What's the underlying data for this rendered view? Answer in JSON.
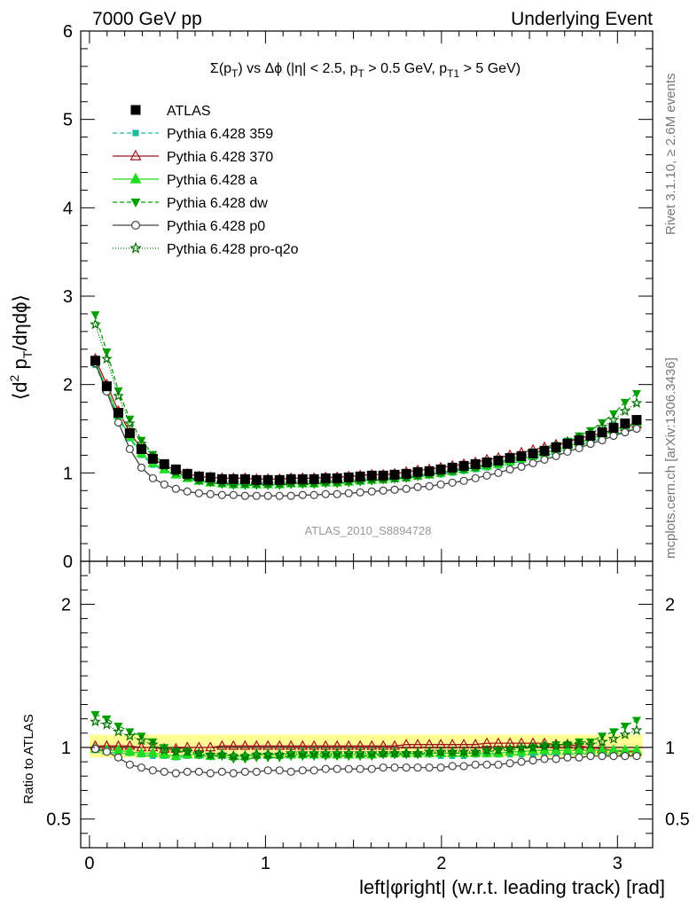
{
  "header": {
    "left": "7000 GeV pp",
    "right": "Underlying Event"
  },
  "side_labels": {
    "rivet": "Rivet 3.1.10, ≥ 2.6M events",
    "mcplots": "mcplots.cern.ch [arXiv:1306.3436]"
  },
  "analysis_tag": "ATLAS_2010_S8894728",
  "chart_data": {
    "type": "line",
    "title": "Σ(p_T) vs Δφ (|η| < 2.5, p_T > 0.5 GeV, p_T1 > 5 GeV)",
    "xlabel": "left|φright| (w.r.t. leading track) [rad]",
    "ylabel": "⟨d² p_T/dηdφ⟩",
    "ratio_ylabel": "Ratio to ATLAS",
    "xlim": [
      -0.05,
      3.2
    ],
    "ylim": [
      0,
      6
    ],
    "ratio_ylim": [
      0.3,
      2.3
    ],
    "x_ticks": [
      "0",
      "1",
      "2",
      "3"
    ],
    "y_ticks": [
      "0",
      "1",
      "2",
      "3",
      "4",
      "5",
      "6"
    ],
    "ratio_ticks": [
      "0.5",
      "1",
      "2"
    ],
    "legend_position": "top-left",
    "grid": false,
    "x": [
      0.033,
      0.098,
      0.164,
      0.229,
      0.295,
      0.36,
      0.425,
      0.491,
      0.556,
      0.622,
      0.687,
      0.753,
      0.818,
      0.884,
      0.949,
      1.014,
      1.08,
      1.145,
      1.211,
      1.276,
      1.342,
      1.407,
      1.473,
      1.538,
      1.604,
      1.669,
      1.734,
      1.8,
      1.865,
      1.931,
      1.996,
      2.062,
      2.127,
      2.193,
      2.258,
      2.323,
      2.389,
      2.454,
      2.52,
      2.585,
      2.651,
      2.716,
      2.782,
      2.847,
      2.913,
      2.978,
      3.043,
      3.109
    ],
    "series": [
      {
        "name": "ATLAS",
        "color": "#000000",
        "marker": "square",
        "values": [
          2.27,
          1.98,
          1.68,
          1.45,
          1.27,
          1.16,
          1.1,
          1.04,
          0.99,
          0.96,
          0.95,
          0.93,
          0.93,
          0.93,
          0.92,
          0.92,
          0.92,
          0.93,
          0.93,
          0.93,
          0.94,
          0.94,
          0.95,
          0.96,
          0.97,
          0.97,
          0.98,
          0.99,
          1.01,
          1.02,
          1.04,
          1.06,
          1.08,
          1.1,
          1.12,
          1.14,
          1.17,
          1.19,
          1.22,
          1.25,
          1.29,
          1.33,
          1.37,
          1.42,
          1.46,
          1.51,
          1.56,
          1.6
        ],
        "ratio": [
          1.0,
          1.0,
          1.0,
          1.0,
          1.0,
          1.0,
          1.0,
          1.0,
          1.0,
          1.0,
          1.0,
          1.0,
          1.0,
          1.0,
          1.0,
          1.0,
          1.0,
          1.0,
          1.0,
          1.0,
          1.0,
          1.0,
          1.0,
          1.0,
          1.0,
          1.0,
          1.0,
          1.0,
          1.0,
          1.0,
          1.0,
          1.0,
          1.0,
          1.0,
          1.0,
          1.0,
          1.0,
          1.0,
          1.0,
          1.0,
          1.0,
          1.0,
          1.0,
          1.0,
          1.0,
          1.0,
          1.0,
          1.0
        ]
      },
      {
        "name": "Pythia 6.428 359",
        "color": "#1abc9c",
        "marker": "square-small",
        "dash": "5,3",
        "values": [
          2.22,
          1.92,
          1.62,
          1.39,
          1.2,
          1.09,
          1.03,
          0.97,
          0.93,
          0.9,
          0.89,
          0.88,
          0.87,
          0.87,
          0.87,
          0.87,
          0.87,
          0.88,
          0.88,
          0.88,
          0.89,
          0.89,
          0.9,
          0.91,
          0.92,
          0.92,
          0.93,
          0.94,
          0.96,
          0.97,
          0.98,
          1.0,
          1.02,
          1.04,
          1.06,
          1.08,
          1.11,
          1.13,
          1.16,
          1.19,
          1.23,
          1.27,
          1.31,
          1.35,
          1.39,
          1.43,
          1.47,
          1.5
        ],
        "ratio": [
          0.98,
          0.97,
          0.96,
          0.96,
          0.95,
          0.94,
          0.94,
          0.93,
          0.94,
          0.94,
          0.94,
          0.95,
          0.94,
          0.94,
          0.95,
          0.95,
          0.95,
          0.95,
          0.95,
          0.95,
          0.95,
          0.95,
          0.95,
          0.95,
          0.95,
          0.95,
          0.95,
          0.95,
          0.95,
          0.95,
          0.94,
          0.94,
          0.94,
          0.95,
          0.95,
          0.95,
          0.95,
          0.95,
          0.95,
          0.95,
          0.95,
          0.95,
          0.96,
          0.95,
          0.95,
          0.95,
          0.94,
          0.94
        ]
      },
      {
        "name": "Pythia 6.428 370",
        "color": "#a0141e",
        "marker": "triangle-open",
        "dash": "",
        "values": [
          2.29,
          2.0,
          1.7,
          1.46,
          1.27,
          1.16,
          1.09,
          1.03,
          0.99,
          0.96,
          0.95,
          0.94,
          0.94,
          0.94,
          0.93,
          0.93,
          0.93,
          0.94,
          0.94,
          0.94,
          0.95,
          0.95,
          0.96,
          0.97,
          0.98,
          0.98,
          0.99,
          1.01,
          1.03,
          1.04,
          1.06,
          1.08,
          1.1,
          1.12,
          1.15,
          1.17,
          1.2,
          1.23,
          1.26,
          1.29,
          1.32,
          1.35,
          1.39,
          1.42,
          1.45,
          1.49,
          1.52,
          1.55
        ],
        "ratio": [
          1.01,
          1.01,
          1.01,
          1.01,
          1.0,
          1.0,
          0.99,
          0.99,
          1.0,
          1.0,
          1.0,
          1.01,
          1.01,
          1.01,
          1.01,
          1.01,
          1.01,
          1.01,
          1.01,
          1.01,
          1.01,
          1.01,
          1.01,
          1.01,
          1.01,
          1.01,
          1.01,
          1.02,
          1.02,
          1.02,
          1.02,
          1.02,
          1.02,
          1.02,
          1.03,
          1.03,
          1.03,
          1.03,
          1.03,
          1.03,
          1.02,
          1.02,
          1.01,
          1.0,
          0.99,
          0.98,
          0.97,
          0.97
        ]
      },
      {
        "name": "Pythia 6.428 a",
        "color": "#22dd22",
        "marker": "triangle",
        "dash": "",
        "values": [
          2.25,
          1.95,
          1.65,
          1.41,
          1.22,
          1.11,
          1.04,
          0.98,
          0.94,
          0.91,
          0.89,
          0.88,
          0.87,
          0.87,
          0.87,
          0.87,
          0.87,
          0.88,
          0.88,
          0.88,
          0.89,
          0.89,
          0.9,
          0.91,
          0.92,
          0.93,
          0.94,
          0.95,
          0.97,
          0.98,
          1.0,
          1.02,
          1.04,
          1.06,
          1.08,
          1.1,
          1.13,
          1.16,
          1.19,
          1.22,
          1.26,
          1.3,
          1.34,
          1.39,
          1.43,
          1.48,
          1.53,
          1.57
        ],
        "ratio": [
          0.99,
          0.98,
          0.98,
          0.97,
          0.96,
          0.96,
          0.95,
          0.94,
          0.95,
          0.95,
          0.94,
          0.95,
          0.94,
          0.94,
          0.95,
          0.95,
          0.95,
          0.95,
          0.95,
          0.95,
          0.95,
          0.95,
          0.95,
          0.95,
          0.95,
          0.96,
          0.96,
          0.96,
          0.96,
          0.96,
          0.96,
          0.96,
          0.96,
          0.96,
          0.96,
          0.96,
          0.97,
          0.97,
          0.98,
          0.98,
          0.98,
          0.98,
          0.98,
          0.98,
          0.98,
          0.98,
          0.98,
          0.98
        ]
      },
      {
        "name": "Pythia 6.428 dw",
        "color": "#00a000",
        "marker": "triangle-down",
        "dash": "5,3",
        "values": [
          2.79,
          2.37,
          1.93,
          1.61,
          1.37,
          1.21,
          1.1,
          1.01,
          0.96,
          0.91,
          0.89,
          0.87,
          0.86,
          0.86,
          0.86,
          0.86,
          0.86,
          0.87,
          0.87,
          0.87,
          0.88,
          0.88,
          0.89,
          0.9,
          0.91,
          0.92,
          0.93,
          0.94,
          0.96,
          0.98,
          1.0,
          1.02,
          1.04,
          1.06,
          1.09,
          1.12,
          1.15,
          1.18,
          1.22,
          1.26,
          1.31,
          1.36,
          1.42,
          1.48,
          1.57,
          1.67,
          1.8,
          1.9
        ],
        "ratio": [
          1.23,
          1.2,
          1.15,
          1.11,
          1.08,
          1.04,
          1.0,
          0.97,
          0.97,
          0.95,
          0.94,
          0.94,
          0.92,
          0.92,
          0.93,
          0.93,
          0.93,
          0.94,
          0.94,
          0.94,
          0.94,
          0.94,
          0.94,
          0.94,
          0.94,
          0.95,
          0.95,
          0.95,
          0.95,
          0.96,
          0.96,
          0.96,
          0.96,
          0.96,
          0.97,
          0.98,
          0.98,
          0.99,
          1.0,
          1.01,
          1.02,
          1.02,
          1.04,
          1.04,
          1.08,
          1.11,
          1.15,
          1.19
        ]
      },
      {
        "name": "Pythia 6.428 p0",
        "color": "#444444",
        "marker": "circle-open",
        "dash": "",
        "values": [
          2.24,
          1.92,
          1.57,
          1.27,
          1.06,
          0.94,
          0.87,
          0.82,
          0.79,
          0.77,
          0.76,
          0.75,
          0.75,
          0.74,
          0.74,
          0.74,
          0.74,
          0.74,
          0.75,
          0.75,
          0.76,
          0.76,
          0.77,
          0.78,
          0.79,
          0.8,
          0.81,
          0.82,
          0.84,
          0.85,
          0.87,
          0.89,
          0.91,
          0.94,
          0.97,
          1.0,
          1.04,
          1.07,
          1.11,
          1.15,
          1.19,
          1.24,
          1.28,
          1.33,
          1.37,
          1.42,
          1.46,
          1.5
        ],
        "ratio": [
          0.99,
          0.97,
          0.93,
          0.88,
          0.86,
          0.84,
          0.83,
          0.82,
          0.83,
          0.83,
          0.82,
          0.83,
          0.82,
          0.83,
          0.83,
          0.84,
          0.84,
          0.83,
          0.84,
          0.84,
          0.85,
          0.85,
          0.85,
          0.85,
          0.85,
          0.86,
          0.86,
          0.86,
          0.86,
          0.86,
          0.86,
          0.87,
          0.87,
          0.88,
          0.88,
          0.88,
          0.89,
          0.9,
          0.91,
          0.92,
          0.92,
          0.93,
          0.93,
          0.94,
          0.94,
          0.94,
          0.94,
          0.94
        ]
      },
      {
        "name": "Pythia 6.428 pro-q2o",
        "color": "#007000",
        "marker": "star",
        "dash": "1,2",
        "values": [
          2.68,
          2.29,
          1.87,
          1.56,
          1.33,
          1.18,
          1.08,
          1.01,
          0.96,
          0.92,
          0.9,
          0.89,
          0.88,
          0.88,
          0.88,
          0.88,
          0.88,
          0.89,
          0.89,
          0.89,
          0.9,
          0.9,
          0.91,
          0.92,
          0.93,
          0.93,
          0.94,
          0.95,
          0.97,
          0.99,
          1.01,
          1.03,
          1.05,
          1.07,
          1.1,
          1.12,
          1.16,
          1.19,
          1.22,
          1.26,
          1.3,
          1.35,
          1.4,
          1.45,
          1.52,
          1.6,
          1.7,
          1.79
        ],
        "ratio": [
          1.18,
          1.16,
          1.11,
          1.08,
          1.05,
          1.02,
          0.98,
          0.97,
          0.97,
          0.96,
          0.95,
          0.95,
          0.94,
          0.94,
          0.95,
          0.95,
          0.95,
          0.96,
          0.96,
          0.96,
          0.96,
          0.96,
          0.96,
          0.96,
          0.96,
          0.96,
          0.96,
          0.96,
          0.96,
          0.97,
          0.97,
          0.97,
          0.97,
          0.97,
          0.98,
          0.98,
          0.99,
          1.0,
          1.0,
          1.01,
          1.01,
          1.02,
          1.02,
          1.02,
          1.04,
          1.06,
          1.09,
          1.12
        ]
      }
    ]
  }
}
